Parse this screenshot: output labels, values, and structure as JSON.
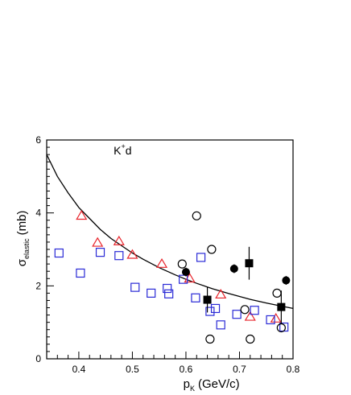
{
  "chart_data": {
    "type": "scatter",
    "title": "",
    "xlabel": {
      "main": "p",
      "sub": "K",
      "unit": "(GeV/c)"
    },
    "ylabel": {
      "main": "σ",
      "sub": "elastic",
      "unit": "(mb)"
    },
    "xlim": [
      0.34,
      0.8
    ],
    "ylim": [
      0,
      6
    ],
    "xticks": [
      "0.4",
      "0.5",
      "0.6",
      "0.7",
      "0.8"
    ],
    "yticks": [
      "0",
      "2",
      "4",
      "6"
    ],
    "annotation": {
      "main": "K",
      "sup": "+",
      "rest": "d"
    },
    "grid": false,
    "legend": "none",
    "series": [
      {
        "marker": "open-triangle",
        "color": "#e8232a",
        "points": [
          {
            "x": 0.405,
            "y": 3.92
          },
          {
            "x": 0.435,
            "y": 3.18
          },
          {
            "x": 0.475,
            "y": 3.22
          },
          {
            "x": 0.5,
            "y": 2.85
          },
          {
            "x": 0.555,
            "y": 2.6
          },
          {
            "x": 0.607,
            "y": 2.2
          },
          {
            "x": 0.665,
            "y": 1.76
          },
          {
            "x": 0.72,
            "y": 1.15
          },
          {
            "x": 0.768,
            "y": 1.1
          }
        ]
      },
      {
        "marker": "open-square",
        "color": "#2a2ad6",
        "points": [
          {
            "x": 0.363,
            "y": 2.9
          },
          {
            "x": 0.403,
            "y": 2.35
          },
          {
            "x": 0.44,
            "y": 2.92
          },
          {
            "x": 0.475,
            "y": 2.83
          },
          {
            "x": 0.505,
            "y": 1.96
          },
          {
            "x": 0.535,
            "y": 1.8
          },
          {
            "x": 0.565,
            "y": 1.93
          },
          {
            "x": 0.568,
            "y": 1.78
          },
          {
            "x": 0.595,
            "y": 2.18
          },
          {
            "x": 0.618,
            "y": 1.67
          },
          {
            "x": 0.628,
            "y": 2.78
          },
          {
            "x": 0.645,
            "y": 1.3
          },
          {
            "x": 0.655,
            "y": 1.38
          },
          {
            "x": 0.665,
            "y": 0.93
          },
          {
            "x": 0.695,
            "y": 1.22
          },
          {
            "x": 0.728,
            "y": 1.33
          },
          {
            "x": 0.758,
            "y": 1.07
          },
          {
            "x": 0.783,
            "y": 0.87
          }
        ]
      },
      {
        "marker": "open-circle",
        "color": "#000000",
        "points": [
          {
            "x": 0.62,
            "y": 3.92
          },
          {
            "x": 0.648,
            "y": 3.0
          },
          {
            "x": 0.593,
            "y": 2.6
          },
          {
            "x": 0.645,
            "y": 0.54
          },
          {
            "x": 0.71,
            "y": 1.35
          },
          {
            "x": 0.72,
            "y": 0.54
          },
          {
            "x": 0.77,
            "y": 1.8
          },
          {
            "x": 0.778,
            "y": 0.85
          }
        ]
      },
      {
        "marker": "filled-circle",
        "color": "#000000",
        "points": [
          {
            "x": 0.6,
            "y": 2.38,
            "err": 0.12
          },
          {
            "x": 0.69,
            "y": 2.47,
            "err": 0.12
          },
          {
            "x": 0.787,
            "y": 2.15,
            "err": 0.12
          }
        ]
      },
      {
        "marker": "filled-square",
        "color": "#000000",
        "points": [
          {
            "x": 0.64,
            "y": 1.62,
            "err": 0.35
          },
          {
            "x": 0.718,
            "y": 2.62,
            "err": 0.45
          },
          {
            "x": 0.778,
            "y": 1.42,
            "err": 0.45
          }
        ]
      }
    ],
    "curve": {
      "color": "#000000",
      "x": [
        0.34,
        0.36,
        0.38,
        0.4,
        0.42,
        0.44,
        0.46,
        0.48,
        0.5,
        0.52,
        0.55,
        0.58,
        0.6,
        0.62,
        0.65,
        0.68,
        0.7,
        0.72,
        0.75,
        0.78,
        0.8
      ],
      "y": [
        5.6,
        5.0,
        4.55,
        4.15,
        3.85,
        3.55,
        3.3,
        3.1,
        2.9,
        2.73,
        2.5,
        2.3,
        2.18,
        2.07,
        1.92,
        1.79,
        1.71,
        1.63,
        1.53,
        1.44,
        1.38
      ]
    }
  }
}
